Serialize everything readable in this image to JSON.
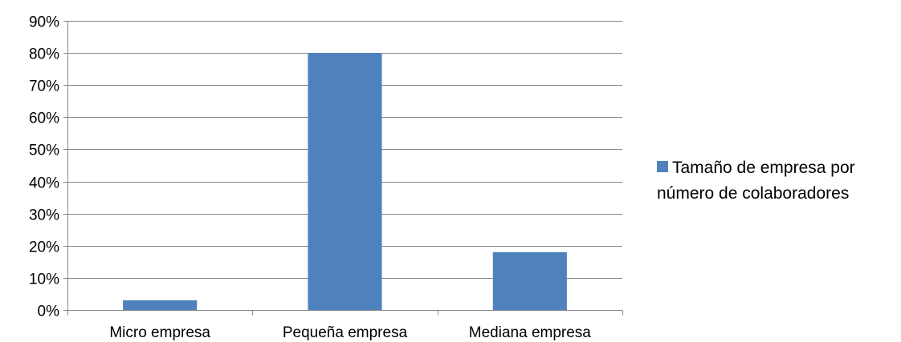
{
  "chart_data": {
    "type": "bar",
    "categories": [
      "Micro empresa",
      "Pequeña empresa",
      "Mediana empresa"
    ],
    "series": [
      {
        "name": "Tamaño de empresa por número de colaboradores",
        "values": [
          0.03,
          0.8,
          0.18
        ],
        "color": "#4F81BD"
      }
    ],
    "y_ticks": [
      "0%",
      "10%",
      "20%",
      "30%",
      "40%",
      "50%",
      "60%",
      "70%",
      "80%",
      "90%"
    ],
    "ylim": [
      0,
      0.9
    ],
    "y_format": "percent",
    "grid": true,
    "legend_position": "right",
    "title": "",
    "xlabel": "",
    "ylabel": ""
  },
  "legend": {
    "label": "Tamaño de empresa por número de colaboradores"
  }
}
